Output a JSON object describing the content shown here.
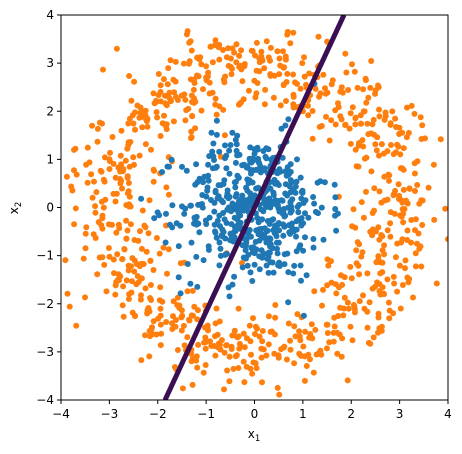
{
  "chart_data": {
    "type": "scatter",
    "xlabel": "x",
    "xlabel_sub": "1",
    "ylabel": "x",
    "ylabel_sub": "2",
    "xlim": [
      -4,
      4
    ],
    "ylim": [
      -4,
      4
    ],
    "xticks": [
      "−4",
      "−3",
      "−2",
      "−1",
      "0",
      "1",
      "2",
      "3",
      "4"
    ],
    "yticks": [
      "−4",
      "−3",
      "−2",
      "−1",
      "0",
      "1",
      "2",
      "3",
      "4"
    ],
    "grid": false,
    "legend": "none",
    "series": [
      {
        "color": "#1f77b4",
        "marker_size": 3,
        "distribution": "gaussian",
        "count": 500,
        "center": [
          0,
          0
        ],
        "std": 0.75
      },
      {
        "color": "#ff7f0e",
        "marker_size": 3,
        "distribution": "ring",
        "count": 900,
        "radius_mean": 3.0,
        "radius_std": 0.45
      }
    ],
    "boundary_line": {
      "color": "#3b0f53",
      "width": 5,
      "points": [
        [
          -1.85,
          -4.0
        ],
        [
          1.85,
          4.0
        ]
      ]
    }
  }
}
